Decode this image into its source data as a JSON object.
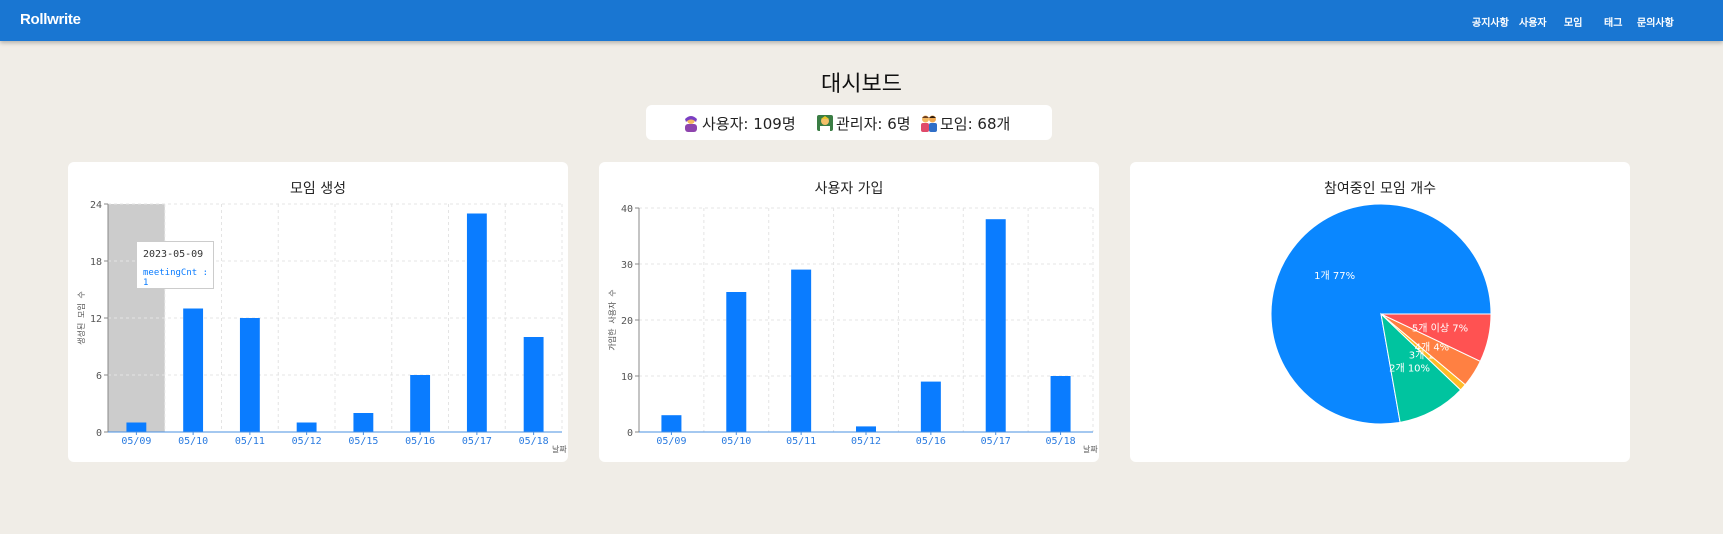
{
  "navbar": {
    "brand": "Rollwrite",
    "items": [
      "공지사항",
      "사용자",
      "모임",
      "태그",
      "문의사항"
    ]
  },
  "page": {
    "title": "대시보드",
    "stats": {
      "users": "사용자: 109명",
      "admins": "관리자: 6명",
      "meetings": "모임: 68개"
    }
  },
  "colors": {
    "navbar": "#1976d2",
    "bar": "#0a7cff",
    "background": "#f0ede7",
    "pie": [
      "#0a87ff",
      "#00c49f",
      "#ffbb28",
      "#ff8042",
      "#ff5252"
    ]
  },
  "tooltip": {
    "date": "2023-05-09",
    "line": "meetingCnt : 1"
  },
  "chart_data": [
    {
      "type": "bar",
      "title": "모임 생성",
      "ylabel": "생성된 모임 수",
      "xlabel": "날짜",
      "categories": [
        "05/09",
        "05/10",
        "05/11",
        "05/12",
        "05/15",
        "05/16",
        "05/17",
        "05/18"
      ],
      "values": [
        1,
        13,
        12,
        1,
        2,
        6,
        23,
        10
      ],
      "ylim": [
        0,
        24
      ],
      "yticks": [
        0,
        6,
        12,
        18,
        24
      ],
      "grid": true
    },
    {
      "type": "bar",
      "title": "사용자 가입",
      "ylabel": "가입한 사용자 수",
      "xlabel": "날짜",
      "categories": [
        "05/09",
        "05/10",
        "05/11",
        "05/12",
        "05/16",
        "05/17",
        "05/18"
      ],
      "values": [
        3,
        25,
        29,
        1,
        9,
        38,
        10
      ],
      "ylim": [
        0,
        40
      ],
      "yticks": [
        0,
        10,
        20,
        30,
        40
      ],
      "grid": true
    },
    {
      "type": "pie",
      "title": "참여중인 모임 개수",
      "labels": [
        "1개 77%",
        "2개 10%",
        "3개 1%",
        "4개 4%",
        "5개 이상 7%"
      ],
      "values": [
        77,
        10,
        1,
        4,
        7
      ]
    }
  ]
}
